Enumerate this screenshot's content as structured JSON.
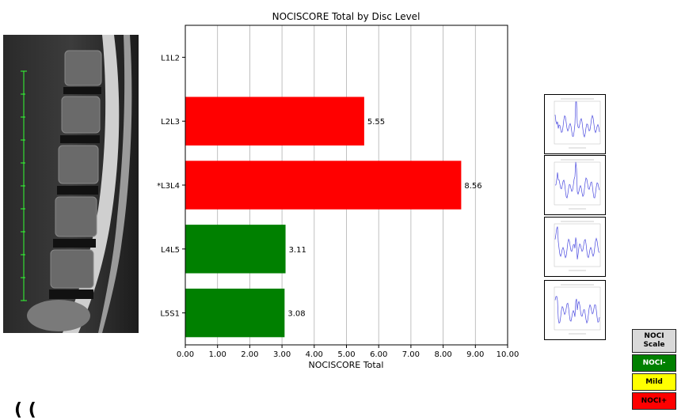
{
  "chart_data": {
    "type": "bar",
    "orientation": "horizontal",
    "title": "NOCISCORE Total by Disc Level",
    "xlabel": "NOCISCORE Total",
    "ylabel": "",
    "xlim": [
      0,
      10
    ],
    "xticks": [
      "0.00",
      "1.00",
      "2.00",
      "3.00",
      "4.00",
      "5.00",
      "6.00",
      "7.00",
      "8.00",
      "9.00",
      "10.00"
    ],
    "grid": "vertical",
    "categories": [
      "L1L2",
      "L2L3",
      "*L3L4",
      "L4L5",
      "L5S1"
    ],
    "values": [
      null,
      5.55,
      8.56,
      3.11,
      3.08
    ],
    "value_labels": [
      "",
      "5.55",
      "8.56",
      "3.11",
      "3.08"
    ],
    "bar_colors": [
      "",
      "#ff0000",
      "#ff0000",
      "#008000",
      "#008000"
    ]
  },
  "legend": {
    "header": "NOCI\nScale",
    "items": [
      {
        "label": "NOCI-",
        "color": "#008000",
        "text_color": "#ffffff"
      },
      {
        "label": "Mild",
        "color": "#ffff00",
        "text_color": "#000000"
      },
      {
        "label": "NOCI+",
        "color": "#ff0000",
        "text_color": "#000000"
      }
    ]
  },
  "thumbnails": [
    "spectrum-plot",
    "spectrum-plot",
    "spectrum-plot",
    "spectrum-plot"
  ],
  "glyph": "( ("
}
